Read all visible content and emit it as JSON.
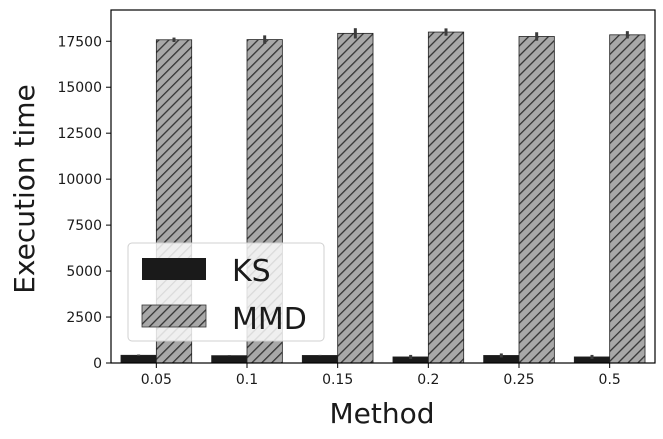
{
  "chart_data": {
    "type": "bar",
    "xlabel": "Method",
    "ylabel": "Execution time",
    "categories": [
      "0.05",
      "0.1",
      "0.15",
      "0.2",
      "0.25",
      "0.5"
    ],
    "series": [
      {
        "name": "KS",
        "values": [
          420,
          400,
          410,
          330,
          410,
          330
        ],
        "errors": [
          40,
          30,
          30,
          110,
          110,
          110
        ],
        "color": "#1a1a1a",
        "pattern": "solid"
      },
      {
        "name": "MMD",
        "values": [
          17580,
          17590,
          17930,
          18000,
          17760,
          17850
        ],
        "errors": [
          120,
          230,
          280,
          200,
          230,
          200
        ],
        "color": "#a8a8a8",
        "pattern": "diagonal-hatch"
      }
    ],
    "ylim": [
      0,
      19200
    ],
    "yticks": [
      0,
      2500,
      5000,
      7500,
      10000,
      12500,
      15000,
      17500
    ],
    "ytick_labels": [
      "0",
      "2500",
      "5000",
      "7500",
      "10000",
      "12500",
      "15000",
      "17500"
    ],
    "grid": false,
    "legend_position": "lower-left"
  }
}
